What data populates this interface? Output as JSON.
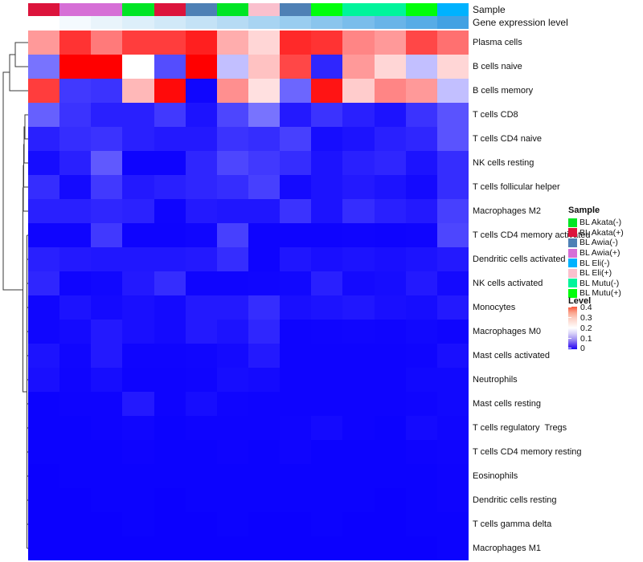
{
  "figure": {
    "background": "#FFFFFF"
  },
  "annotations": {
    "sample_label": "Sample",
    "gene_label": "Gene expression level",
    "sample_colors_by_group": {
      "BL Akata(-)": "#00E524",
      "BL Akata(+)": "#DC143C",
      "BL Awia(-)": "#4E80B5",
      "BL Awia(+)": "#D66FD6",
      "BL Eli(-)": "#00B2FE",
      "BL Eli(+)": "#FAC0CD",
      "BL Mutu(-)": "#00F49B",
      "BL Mutu(+)": "#00FE0C"
    },
    "sample_per_column": [
      "BL Akata(+)",
      "BL Awia(+)",
      "BL Awia(+)",
      "BL Akata(-)",
      "BL Akata(+)",
      "BL Awia(-)",
      "BL Akata(-)",
      "BL Eli(+)",
      "BL Awia(-)",
      "BL Mutu(+)",
      "BL Mutu(-)",
      "BL Mutu(-)",
      "BL Mutu(+)",
      "BL Eli(-)"
    ],
    "gene_expression_colors": [
      "#FFFFFF",
      "#F4FAFE",
      "#E9F4FB",
      "#DDEFFA",
      "#D1E9F8",
      "#C4E2F6",
      "#B6DBF4",
      "#A8D4F2",
      "#99CDF0",
      "#8AC5ED",
      "#7ABDEB",
      "#69B4E8",
      "#57ACE6",
      "#42A1E3"
    ]
  },
  "legend_sample": {
    "title": "Sample",
    "items": [
      {
        "label": "BL Akata(-)",
        "color": "#00E524"
      },
      {
        "label": "BL Akata(+)",
        "color": "#DC143C"
      },
      {
        "label": "BL Awia(-)",
        "color": "#4E80B5"
      },
      {
        "label": "BL Awia(+)",
        "color": "#D66FD6"
      },
      {
        "label": "BL Eli(-)",
        "color": "#00B2FE"
      },
      {
        "label": "BL Eli(+)",
        "color": "#FAC0CD"
      },
      {
        "label": "BL Mutu(-)",
        "color": "#00F49B"
      },
      {
        "label": "BL Mutu(+)",
        "color": "#00FE0C"
      }
    ]
  },
  "legend_level": {
    "title": "Level",
    "ticks": [
      "0.4",
      "0.3",
      "0.2",
      "0.1",
      "0"
    ]
  },
  "chart_data": {
    "type": "heatmap",
    "title": "",
    "columns_n": 14,
    "rows": [
      "Plasma cells",
      "B cells naive",
      "B cells memory",
      "T cells CD8",
      "T cells CD4 naive",
      "NK cells resting",
      "T cells follicular helper",
      "Macrophages M2",
      "T cells CD4 memory activated",
      "Dendritic cells activated",
      "NK cells activated",
      "Monocytes",
      "Macrophages M0",
      "Mast cells activated",
      "Neutrophils",
      "Mast cells resting",
      "T cells regulatory  Tregs",
      "T cells CD4 memory resting",
      "Eosinophils",
      "Dendritic cells resting",
      "T cells gamma delta",
      "Macrophages M1"
    ],
    "column_groups": [
      "BL Akata(+)",
      "BL Awia(+)",
      "BL Awia(+)",
      "BL Akata(-)",
      "BL Akata(+)",
      "BL Awia(-)",
      "BL Akata(-)",
      "BL Eli(+)",
      "BL Awia(-)",
      "BL Mutu(+)",
      "BL Mutu(-)",
      "BL Mutu(-)",
      "BL Mutu(+)",
      "BL Eli(-)"
    ],
    "scale": {
      "min": 0,
      "mid": 0.2,
      "max": 0.45,
      "min_color": "#0A00FE",
      "mid_color": "#FFFFFF",
      "max_color": "#FF0000"
    },
    "values": [
      [
        0.3,
        0.4,
        0.33,
        0.39,
        0.39,
        0.42,
        0.28,
        0.24,
        0.41,
        0.4,
        0.32,
        0.3,
        0.38,
        0.34
      ],
      [
        0.09,
        0.45,
        0.45,
        0.2,
        0.06,
        0.45,
        0.15,
        0.26,
        0.38,
        0.03,
        0.3,
        0.24,
        0.15,
        0.24
      ],
      [
        0.39,
        0.045,
        0.04,
        0.27,
        0.44,
        0.005,
        0.31,
        0.23,
        0.08,
        0.43,
        0.25,
        0.32,
        0.3,
        0.15
      ],
      [
        0.075,
        0.04,
        0.025,
        0.025,
        0.045,
        0.015,
        0.055,
        0.09,
        0.02,
        0.04,
        0.025,
        0.015,
        0.04,
        0.065
      ],
      [
        0.025,
        0.035,
        0.04,
        0.025,
        0.02,
        0.02,
        0.04,
        0.035,
        0.05,
        0.01,
        0.015,
        0.025,
        0.03,
        0.065
      ],
      [
        0.01,
        0.025,
        0.07,
        0.003,
        0.003,
        0.03,
        0.055,
        0.045,
        0.035,
        0.015,
        0.025,
        0.03,
        0.015,
        0.035
      ],
      [
        0.035,
        0.008,
        0.045,
        0.02,
        0.025,
        0.03,
        0.035,
        0.05,
        0.008,
        0.015,
        0.02,
        0.015,
        0.008,
        0.035
      ],
      [
        0.025,
        0.025,
        0.03,
        0.027,
        0.004,
        0.02,
        0.017,
        0.017,
        0.04,
        0.015,
        0.035,
        0.025,
        0.02,
        0.05
      ],
      [
        0.004,
        0.004,
        0.045,
        0.003,
        0.003,
        0.005,
        0.05,
        0.003,
        0.003,
        0.003,
        0.004,
        0.003,
        0.004,
        0.055
      ],
      [
        0.025,
        0.02,
        0.018,
        0.018,
        0.018,
        0.02,
        0.035,
        0.003,
        0.017,
        0.012,
        0.015,
        0.012,
        0.015,
        0.02
      ],
      [
        0.03,
        0.004,
        0.006,
        0.02,
        0.035,
        0.004,
        0.004,
        0.005,
        0.006,
        0.025,
        0.008,
        0.01,
        0.02,
        0.008
      ],
      [
        0.005,
        0.015,
        0.008,
        0.012,
        0.008,
        0.02,
        0.02,
        0.035,
        0.012,
        0.015,
        0.018,
        0.012,
        0.01,
        0.02
      ],
      [
        0.005,
        0.008,
        0.02,
        0.012,
        0.008,
        0.02,
        0.015,
        0.03,
        0.003,
        0.004,
        0.005,
        0.004,
        0.006,
        0.004
      ],
      [
        0.015,
        0.005,
        0.02,
        0.004,
        0.004,
        0.005,
        0.008,
        0.02,
        0.003,
        0.003,
        0.003,
        0.003,
        0.004,
        0.012
      ],
      [
        0.012,
        0.004,
        0.01,
        0.003,
        0.003,
        0.004,
        0.01,
        0.008,
        0.003,
        0.003,
        0.003,
        0.003,
        0.006,
        0.006
      ],
      [
        0.002,
        0.003,
        0.003,
        0.02,
        0.003,
        0.01,
        0.004,
        0.003,
        0.003,
        0.003,
        0.003,
        0.003,
        0.004,
        0.006
      ],
      [
        0.002,
        0.002,
        0.003,
        0.005,
        0.002,
        0.003,
        0.003,
        0.003,
        0.004,
        0.008,
        0.003,
        0.002,
        0.008,
        0.005
      ],
      [
        0.002,
        0.002,
        0.002,
        0.003,
        0.002,
        0.002,
        0.003,
        0.002,
        0.004,
        0.002,
        0.002,
        0.002,
        0.003,
        0.004
      ],
      [
        0.001,
        0.002,
        0.002,
        0.002,
        0.002,
        0.002,
        0.002,
        0.002,
        0.002,
        0.002,
        0.002,
        0.002,
        0.002,
        0.003
      ],
      [
        0.001,
        0.001,
        0.002,
        0.002,
        0.001,
        0.002,
        0.002,
        0.002,
        0.002,
        0.002,
        0.002,
        0.001,
        0.002,
        0.003
      ],
      [
        0.001,
        0.001,
        0.001,
        0.002,
        0.001,
        0.001,
        0.002,
        0.001,
        0.001,
        0.002,
        0.001,
        0.001,
        0.002,
        0.002
      ],
      [
        0.001,
        0.001,
        0.001,
        0.001,
        0.001,
        0.001,
        0.001,
        0.001,
        0.001,
        0.001,
        0.001,
        0.001,
        0.001,
        0.002
      ]
    ]
  }
}
